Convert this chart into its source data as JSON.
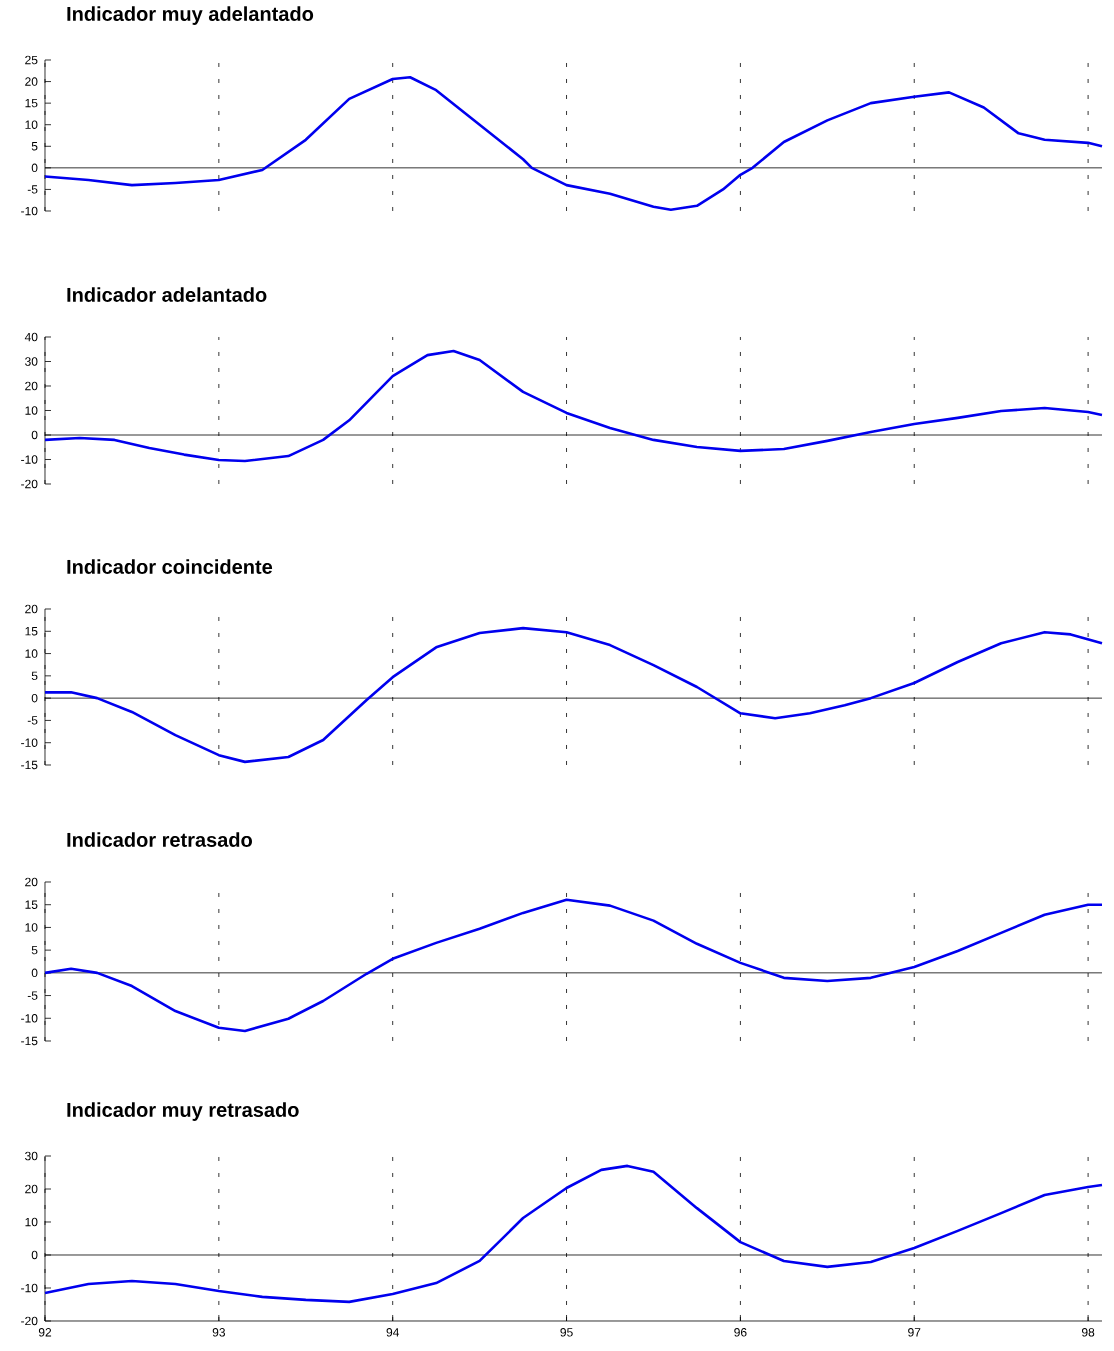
{
  "chart_data": [
    {
      "type": "line",
      "title": "Indicador muy adelantado",
      "xlim": [
        92,
        98.08
      ],
      "xticks": [
        92,
        93,
        94,
        95,
        96,
        97,
        98
      ],
      "ylim": [
        -10,
        25
      ],
      "yticks": [
        -10,
        -5,
        0,
        5,
        10,
        15,
        20,
        25
      ],
      "tick_labels": "y",
      "grid": "x",
      "marker": "none",
      "line_style": "solid",
      "ref_lines": [
        {
          "axis": "y",
          "value": 0,
          "color": "#000000"
        }
      ],
      "series": [
        {
          "color": "#0000ee",
          "x": [
            92,
            92.25,
            92.5,
            92.75,
            93,
            93.25,
            93.5,
            93.75,
            94,
            94.1,
            94.25,
            94.5,
            94.75,
            94.8,
            95,
            95.25,
            95.5,
            95.6,
            95.75,
            95.9,
            96,
            96.07,
            96.25,
            96.5,
            96.75,
            97,
            97.2,
            97.4,
            97.6,
            97.75,
            98,
            98.08
          ],
          "values": [
            -2,
            -2.8,
            -4,
            -3.5,
            -2.8,
            -0.5,
            6.5,
            16,
            20.6,
            21,
            18,
            10,
            2,
            0,
            -4,
            -6,
            -9,
            -9.7,
            -8.8,
            -5,
            -1.6,
            0,
            6,
            11,
            15,
            16.5,
            17.5,
            14,
            8,
            6.5,
            5.8,
            5
          ]
        }
      ]
    },
    {
      "type": "line",
      "title": "Indicador adelantado",
      "xlim": [
        92,
        98.08
      ],
      "xticks": [
        92,
        93,
        94,
        95,
        96,
        97,
        98
      ],
      "ylim": [
        -20,
        40
      ],
      "yticks": [
        -20,
        -10,
        0,
        10,
        20,
        30,
        40
      ],
      "tick_labels": "y",
      "grid": "x",
      "marker": "none",
      "line_style": "solid",
      "ref_lines": [
        {
          "axis": "y",
          "value": 0,
          "color": "#000000"
        }
      ],
      "series": [
        {
          "color": "#0000ee",
          "x": [
            92,
            92.2,
            92.4,
            92.6,
            92.8,
            93,
            93.15,
            93.4,
            93.6,
            93.75,
            94,
            94.2,
            94.35,
            94.5,
            94.75,
            95,
            95.25,
            95.5,
            95.75,
            96,
            96.25,
            96.5,
            96.75,
            97,
            97.25,
            97.5,
            97.75,
            98,
            98.08
          ],
          "values": [
            -2,
            -1.2,
            -2,
            -5.3,
            -8,
            -10.2,
            -10.6,
            -8.6,
            -2,
            6,
            24,
            32.6,
            34.3,
            30.6,
            17.6,
            9,
            2.9,
            -2,
            -4.9,
            -6.5,
            -5.7,
            -2.4,
            1.2,
            4.5,
            7,
            9.8,
            11,
            9.4,
            8.2
          ]
        }
      ]
    },
    {
      "type": "line",
      "title": "Indicador coincidente",
      "xlim": [
        92,
        98.08
      ],
      "xticks": [
        92,
        93,
        94,
        95,
        96,
        97,
        98
      ],
      "ylim": [
        -15,
        20
      ],
      "yticks": [
        -15,
        -10,
        -5,
        0,
        5,
        10,
        15,
        20
      ],
      "tick_labels": "y",
      "grid": "x",
      "marker": "none",
      "line_style": "solid",
      "ref_lines": [
        {
          "axis": "y",
          "value": 0,
          "color": "#000000"
        }
      ],
      "series": [
        {
          "color": "#0000ee",
          "x": [
            92,
            92.15,
            92.3,
            92.5,
            92.75,
            93,
            93.15,
            93.4,
            93.6,
            93.85,
            94,
            94.25,
            94.5,
            94.75,
            95,
            95.25,
            95.5,
            95.75,
            96,
            96.2,
            96.4,
            96.6,
            96.75,
            97,
            97.25,
            97.5,
            97.75,
            97.9,
            98.08
          ],
          "values": [
            1.3,
            1.3,
            0,
            -3.1,
            -8.3,
            -12.8,
            -14.3,
            -13.2,
            -9.4,
            -0.4,
            4.7,
            11.4,
            14.6,
            15.7,
            14.8,
            11.9,
            7.4,
            2.5,
            -3.4,
            -4.5,
            -3.4,
            -1.6,
            0,
            3.4,
            8.1,
            12.3,
            14.8,
            14.3,
            12.3
          ]
        }
      ]
    },
    {
      "type": "line",
      "title": "Indicador retrasado",
      "xlim": [
        92,
        98.08
      ],
      "xticks": [
        92,
        93,
        94,
        95,
        96,
        97,
        98
      ],
      "ylim": [
        -15,
        20
      ],
      "yticks": [
        -15,
        -10,
        -5,
        0,
        5,
        10,
        15,
        20
      ],
      "tick_labels": "y",
      "grid": "x",
      "marker": "none",
      "line_style": "solid",
      "ref_lines": [
        {
          "axis": "y",
          "value": 0,
          "color": "#000000"
        }
      ],
      "series": [
        {
          "color": "#0000ee",
          "x": [
            92,
            92.15,
            92.3,
            92.5,
            92.75,
            93,
            93.15,
            93.4,
            93.6,
            93.85,
            94,
            94.25,
            94.5,
            94.75,
            95,
            95.25,
            95.5,
            95.75,
            96,
            96.25,
            96.5,
            96.75,
            97,
            97.25,
            97.5,
            97.75,
            98,
            98.08
          ],
          "values": [
            0,
            0.9,
            0,
            -2.9,
            -8.4,
            -12.1,
            -12.8,
            -10.1,
            -6.2,
            -0.2,
            3.1,
            6.6,
            9.7,
            13.2,
            16.1,
            14.8,
            11.5,
            6.4,
            2.2,
            -1.1,
            -1.8,
            -1.1,
            1.3,
            4.8,
            8.8,
            12.8,
            15,
            15
          ]
        }
      ]
    },
    {
      "type": "line",
      "title": "Indicador muy retrasado",
      "xlim": [
        92,
        98.08
      ],
      "xticks": [
        92,
        93,
        94,
        95,
        96,
        97,
        98
      ],
      "ylim": [
        -20,
        30
      ],
      "yticks": [
        -20,
        -10,
        0,
        10,
        20,
        30
      ],
      "grid": "x",
      "marker": "none",
      "line_style": "solid",
      "ref_lines": [
        {
          "axis": "y",
          "value": 0,
          "color": "#000000"
        }
      ],
      "series": [
        {
          "color": "#0000ee",
          "x": [
            92,
            92.25,
            92.5,
            92.75,
            93,
            93.25,
            93.5,
            93.75,
            94,
            94.25,
            94.5,
            94.75,
            95,
            95.2,
            95.35,
            95.5,
            95.75,
            96,
            96.25,
            96.5,
            96.75,
            97,
            97.25,
            97.5,
            97.75,
            98,
            98.08
          ],
          "values": [
            -11.5,
            -8.8,
            -7.9,
            -8.8,
            -10.9,
            -12.7,
            -13.6,
            -14.2,
            -11.8,
            -8.5,
            -1.8,
            11.2,
            20.3,
            25.8,
            27,
            25.2,
            14.2,
            3.9,
            -1.8,
            -3.6,
            -2.1,
            2.1,
            7.3,
            12.7,
            18.2,
            20.6,
            21.2
          ]
        }
      ]
    }
  ]
}
